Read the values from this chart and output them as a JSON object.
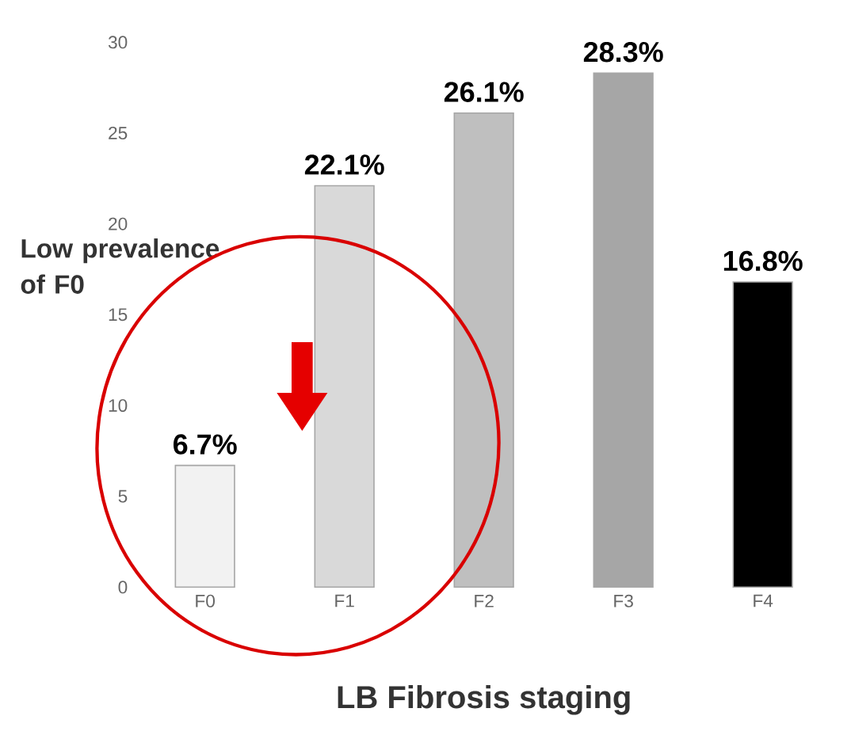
{
  "chart_data": {
    "type": "bar",
    "xlabel": "LB Fibrosis staging",
    "categories": [
      "F0",
      "F1",
      "F2",
      "F3",
      "F4"
    ],
    "values": [
      6.7,
      22.1,
      26.1,
      28.3,
      16.8
    ],
    "colors": [
      "#f2f2f2",
      "#d9d9d9",
      "#bfbfbf",
      "#a6a6a6",
      "#000000"
    ],
    "value_labels": [
      "6.7%",
      "22.1%",
      "26.1%",
      "28.3%",
      "16.8%"
    ],
    "ylim": [
      0,
      30
    ],
    "yticks": [
      0,
      5,
      10,
      15,
      20,
      25,
      30
    ],
    "annotations": [
      "Low prevalence of F0"
    ]
  }
}
